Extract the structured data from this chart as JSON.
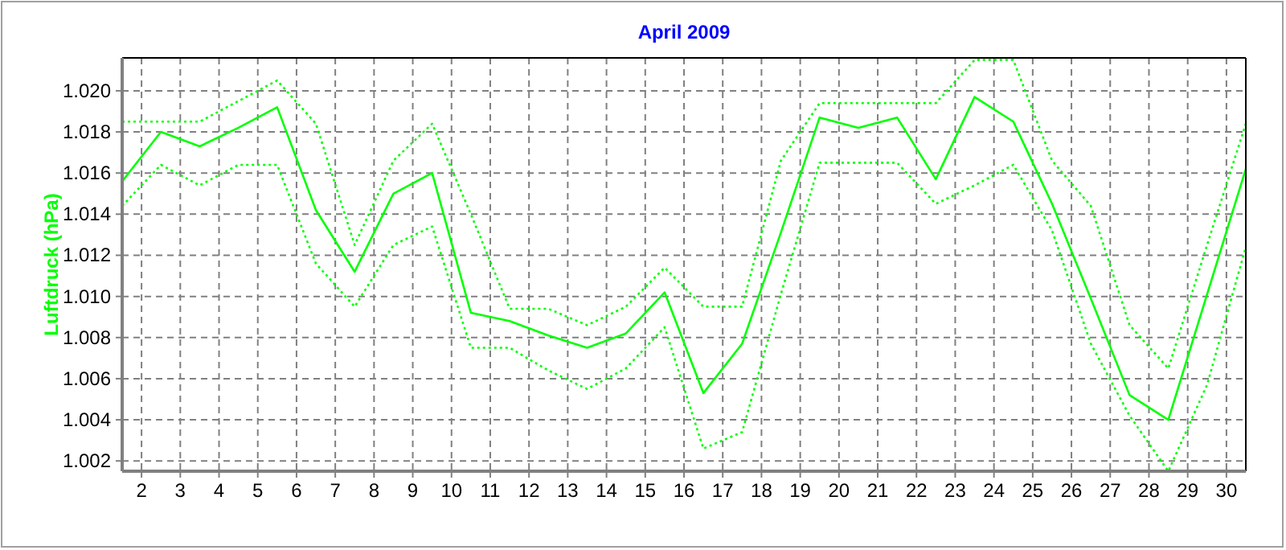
{
  "chart_data": {
    "type": "line",
    "title": "April 2009",
    "ylabel": "Luftdruck  (hPa)",
    "x": [
      1.5,
      2.5,
      3.5,
      4.5,
      5.5,
      6.5,
      7.5,
      8.5,
      9.5,
      10.5,
      11.5,
      12.5,
      13.5,
      14.5,
      15.5,
      16.5,
      17.5,
      18.5,
      19.5,
      20.5,
      21.5,
      22.5,
      23.5,
      24.5,
      25.5,
      26.5,
      27.5,
      28.5,
      29.5,
      30.5
    ],
    "series": [
      {
        "color": "#00ff00",
        "line_style": "dotted",
        "values": [
          1.0185,
          1.0185,
          1.0185,
          1.0195,
          1.0205,
          1.0184,
          1.0125,
          1.0166,
          1.0184,
          1.014,
          1.0094,
          1.0094,
          1.0086,
          1.0095,
          1.0114,
          1.0095,
          1.0095,
          1.0166,
          1.0194,
          1.0194,
          1.0194,
          1.0194,
          1.0215,
          1.0215,
          1.0166,
          1.0144,
          1.0086,
          1.0065,
          1.0125,
          1.0184
        ]
      },
      {
        "color": "#00ff00",
        "line_style": "solid",
        "values": [
          1.0156,
          1.018,
          1.0173,
          1.0182,
          1.0192,
          1.0142,
          1.0112,
          1.015,
          1.016,
          1.0092,
          1.0088,
          1.0081,
          1.0075,
          1.0082,
          1.0102,
          1.0053,
          1.0077,
          1.0131,
          1.0187,
          1.0182,
          1.0187,
          1.0157,
          1.0197,
          1.0185,
          1.0145,
          1.0099,
          1.0052,
          1.004,
          1.0101,
          1.0162
        ]
      },
      {
        "color": "#00ff00",
        "line_style": "dotted",
        "values": [
          1.0144,
          1.0164,
          1.0154,
          1.0164,
          1.0164,
          1.0116,
          1.0095,
          1.0125,
          1.0134,
          1.0075,
          1.0075,
          1.0064,
          1.0055,
          1.0065,
          1.0085,
          1.0026,
          1.0034,
          1.0101,
          1.0165,
          1.0165,
          1.0165,
          1.0145,
          1.0154,
          1.0164,
          1.0132,
          1.0077,
          1.0042,
          1.0015,
          1.0057,
          1.0124
        ]
      }
    ],
    "xlim": [
      1.5,
      30.5
    ],
    "xticks": [
      2,
      3,
      4,
      5,
      6,
      7,
      8,
      9,
      10,
      11,
      12,
      13,
      14,
      15,
      16,
      17,
      18,
      19,
      20,
      21,
      22,
      23,
      24,
      25,
      26,
      27,
      28,
      29,
      30
    ],
    "ylim": [
      1.0015,
      1.0216
    ],
    "yticks": [
      {
        "value": 1.002,
        "label": "1.002"
      },
      {
        "value": 1.004,
        "label": "1.004"
      },
      {
        "value": 1.006,
        "label": "1.006"
      },
      {
        "value": 1.008,
        "label": "1.008"
      },
      {
        "value": 1.01,
        "label": "1.010"
      },
      {
        "value": 1.012,
        "label": "1.012"
      },
      {
        "value": 1.014,
        "label": "1.014"
      },
      {
        "value": 1.016,
        "label": "1.016"
      },
      {
        "value": 1.018,
        "label": "1.018"
      },
      {
        "value": 1.02,
        "label": "1.020"
      }
    ],
    "grid": true
  }
}
